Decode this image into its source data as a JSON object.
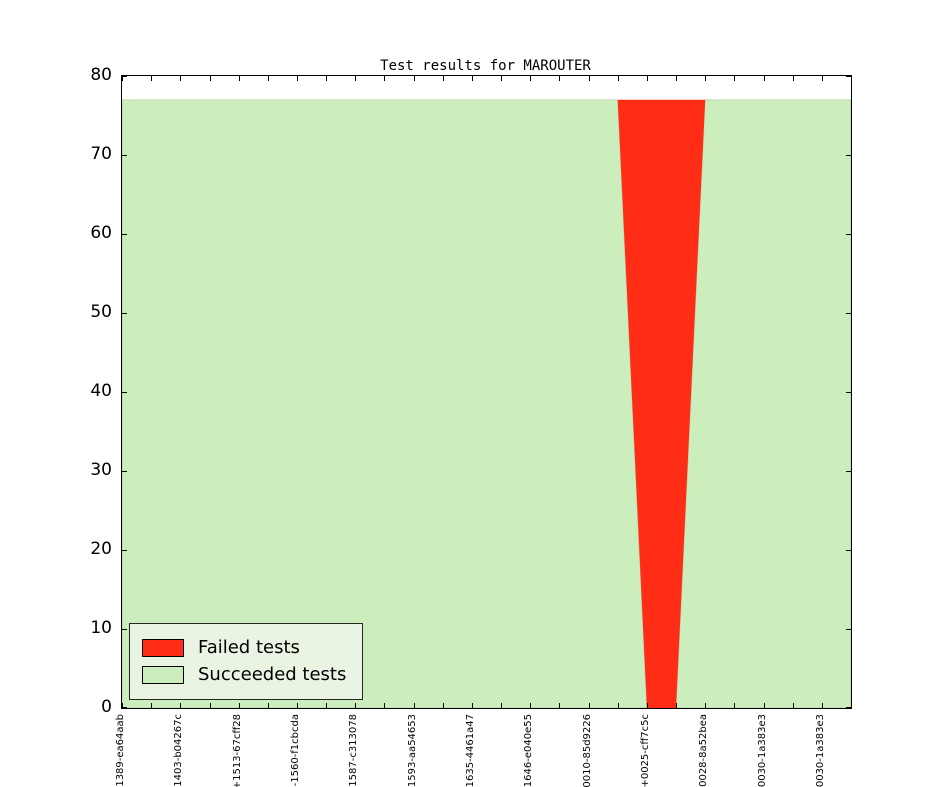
{
  "chart_data": {
    "type": "area",
    "variant": "stacked",
    "title": "Test results for MAROUTER",
    "xlabel": "",
    "ylabel": "",
    "ylim": [
      0,
      80
    ],
    "yticks": [
      0,
      10,
      20,
      30,
      40,
      50,
      60,
      70,
      80
    ],
    "n_points": 26,
    "x_tick_label_every": 2,
    "grid": false,
    "legend_position": "lower-left",
    "total_tests_per_run": 77,
    "categories": [
      "1389-ea64aab",
      "1403-b04267c",
      "+1513-67cff28",
      "-1560-f1cbcda",
      "1587-c313078",
      "1593-aa54653",
      "1635-4461a47",
      "1646-e040e55",
      "0010-85d9226",
      "+0025-cff7c5c",
      "0028-8a52bea",
      "0030-1a383e3",
      "0030-1a383e3"
    ],
    "series": [
      {
        "id": "succeeded",
        "name": "Succeeded tests",
        "color": "#ccedbc",
        "values": [
          77,
          77,
          77,
          77,
          77,
          77,
          77,
          77,
          77,
          77,
          77,
          77,
          77,
          77,
          77,
          77,
          77,
          77,
          0,
          0,
          77,
          77,
          77,
          77,
          77,
          77
        ]
      },
      {
        "id": "failed",
        "name": "Failed tests",
        "color": "#ff2d16",
        "values": [
          0,
          0,
          0,
          0,
          0,
          0,
          0,
          0,
          0,
          0,
          0,
          0,
          0,
          0,
          0,
          0,
          0,
          0,
          77,
          77,
          0,
          0,
          0,
          0,
          0,
          0
        ]
      }
    ],
    "stacking_order": "bottom-to-top",
    "legend": {
      "entries": [
        {
          "label": "Failed tests",
          "color": "#ff2d16"
        },
        {
          "label": "Succeeded tests",
          "color": "#ccedbc"
        }
      ]
    }
  }
}
